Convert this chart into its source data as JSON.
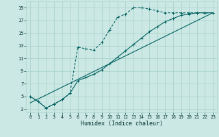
{
  "xlabel": "Humidex (Indice chaleur)",
  "bg_color": "#cce8e4",
  "grid_color": "#aad4cc",
  "line_color": "#006060",
  "xlim": [
    -0.5,
    23.5
  ],
  "ylim": [
    2.5,
    20.0
  ],
  "yticks": [
    3,
    5,
    7,
    9,
    11,
    13,
    15,
    17,
    19
  ],
  "xticks": [
    0,
    1,
    2,
    3,
    4,
    5,
    6,
    7,
    8,
    9,
    10,
    11,
    12,
    13,
    14,
    15,
    16,
    17,
    18,
    19,
    20,
    21,
    22,
    23
  ],
  "line1_x": [
    0,
    1,
    2,
    3,
    4,
    5,
    6,
    7,
    8,
    9,
    10,
    11,
    12,
    13,
    14,
    15,
    16,
    17,
    18,
    19,
    20,
    21,
    22,
    23
  ],
  "line1_y": [
    5.0,
    4.2,
    3.2,
    3.8,
    4.5,
    5.5,
    12.8,
    12.5,
    12.3,
    13.5,
    15.5,
    17.5,
    18.0,
    19.0,
    19.0,
    18.8,
    18.5,
    18.2,
    18.2,
    18.2,
    18.2,
    18.2,
    18.2,
    18.2
  ],
  "line2_x": [
    0,
    1,
    2,
    3,
    4,
    5,
    6,
    7,
    8,
    9,
    10,
    11,
    12,
    13,
    14,
    15,
    16,
    17,
    18,
    19,
    20,
    21,
    22,
    23
  ],
  "line2_y": [
    5.0,
    4.2,
    3.2,
    3.8,
    4.5,
    5.5,
    7.5,
    8.0,
    8.5,
    9.2,
    10.2,
    11.2,
    12.2,
    13.2,
    14.2,
    15.2,
    16.0,
    16.8,
    17.3,
    17.8,
    18.0,
    18.2,
    18.2,
    18.2
  ],
  "line3_x": [
    0,
    23
  ],
  "line3_y": [
    4.0,
    18.2
  ]
}
